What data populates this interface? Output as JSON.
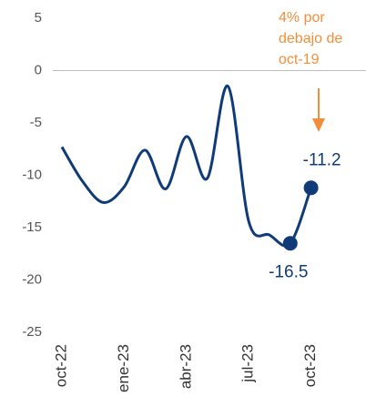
{
  "chart_data": {
    "type": "line",
    "categories": [
      "oct-22",
      null,
      null,
      "ene-23",
      null,
      null,
      "abr-23",
      null,
      null,
      "jul-23",
      null,
      null,
      "oct-23"
    ],
    "series": [
      {
        "color": "#0f3b78",
        "values": [
          -7.3,
          -10.6,
          -12.6,
          -11.1,
          -7.6,
          -11.3,
          -6.3,
          -10.3,
          -1.5,
          -14.4,
          -15.7,
          -16.5,
          -11.2
        ]
      }
    ],
    "highlight": [
      11,
      12
    ],
    "ylim": [
      5,
      -25
    ],
    "yticks": [
      5,
      0,
      -5,
      -10,
      -15,
      -20,
      -25
    ],
    "zero_line": true,
    "annotation": {
      "lines": [
        "4% por",
        "debajo de",
        "oct-19"
      ],
      "color": "#f28e3a"
    }
  }
}
